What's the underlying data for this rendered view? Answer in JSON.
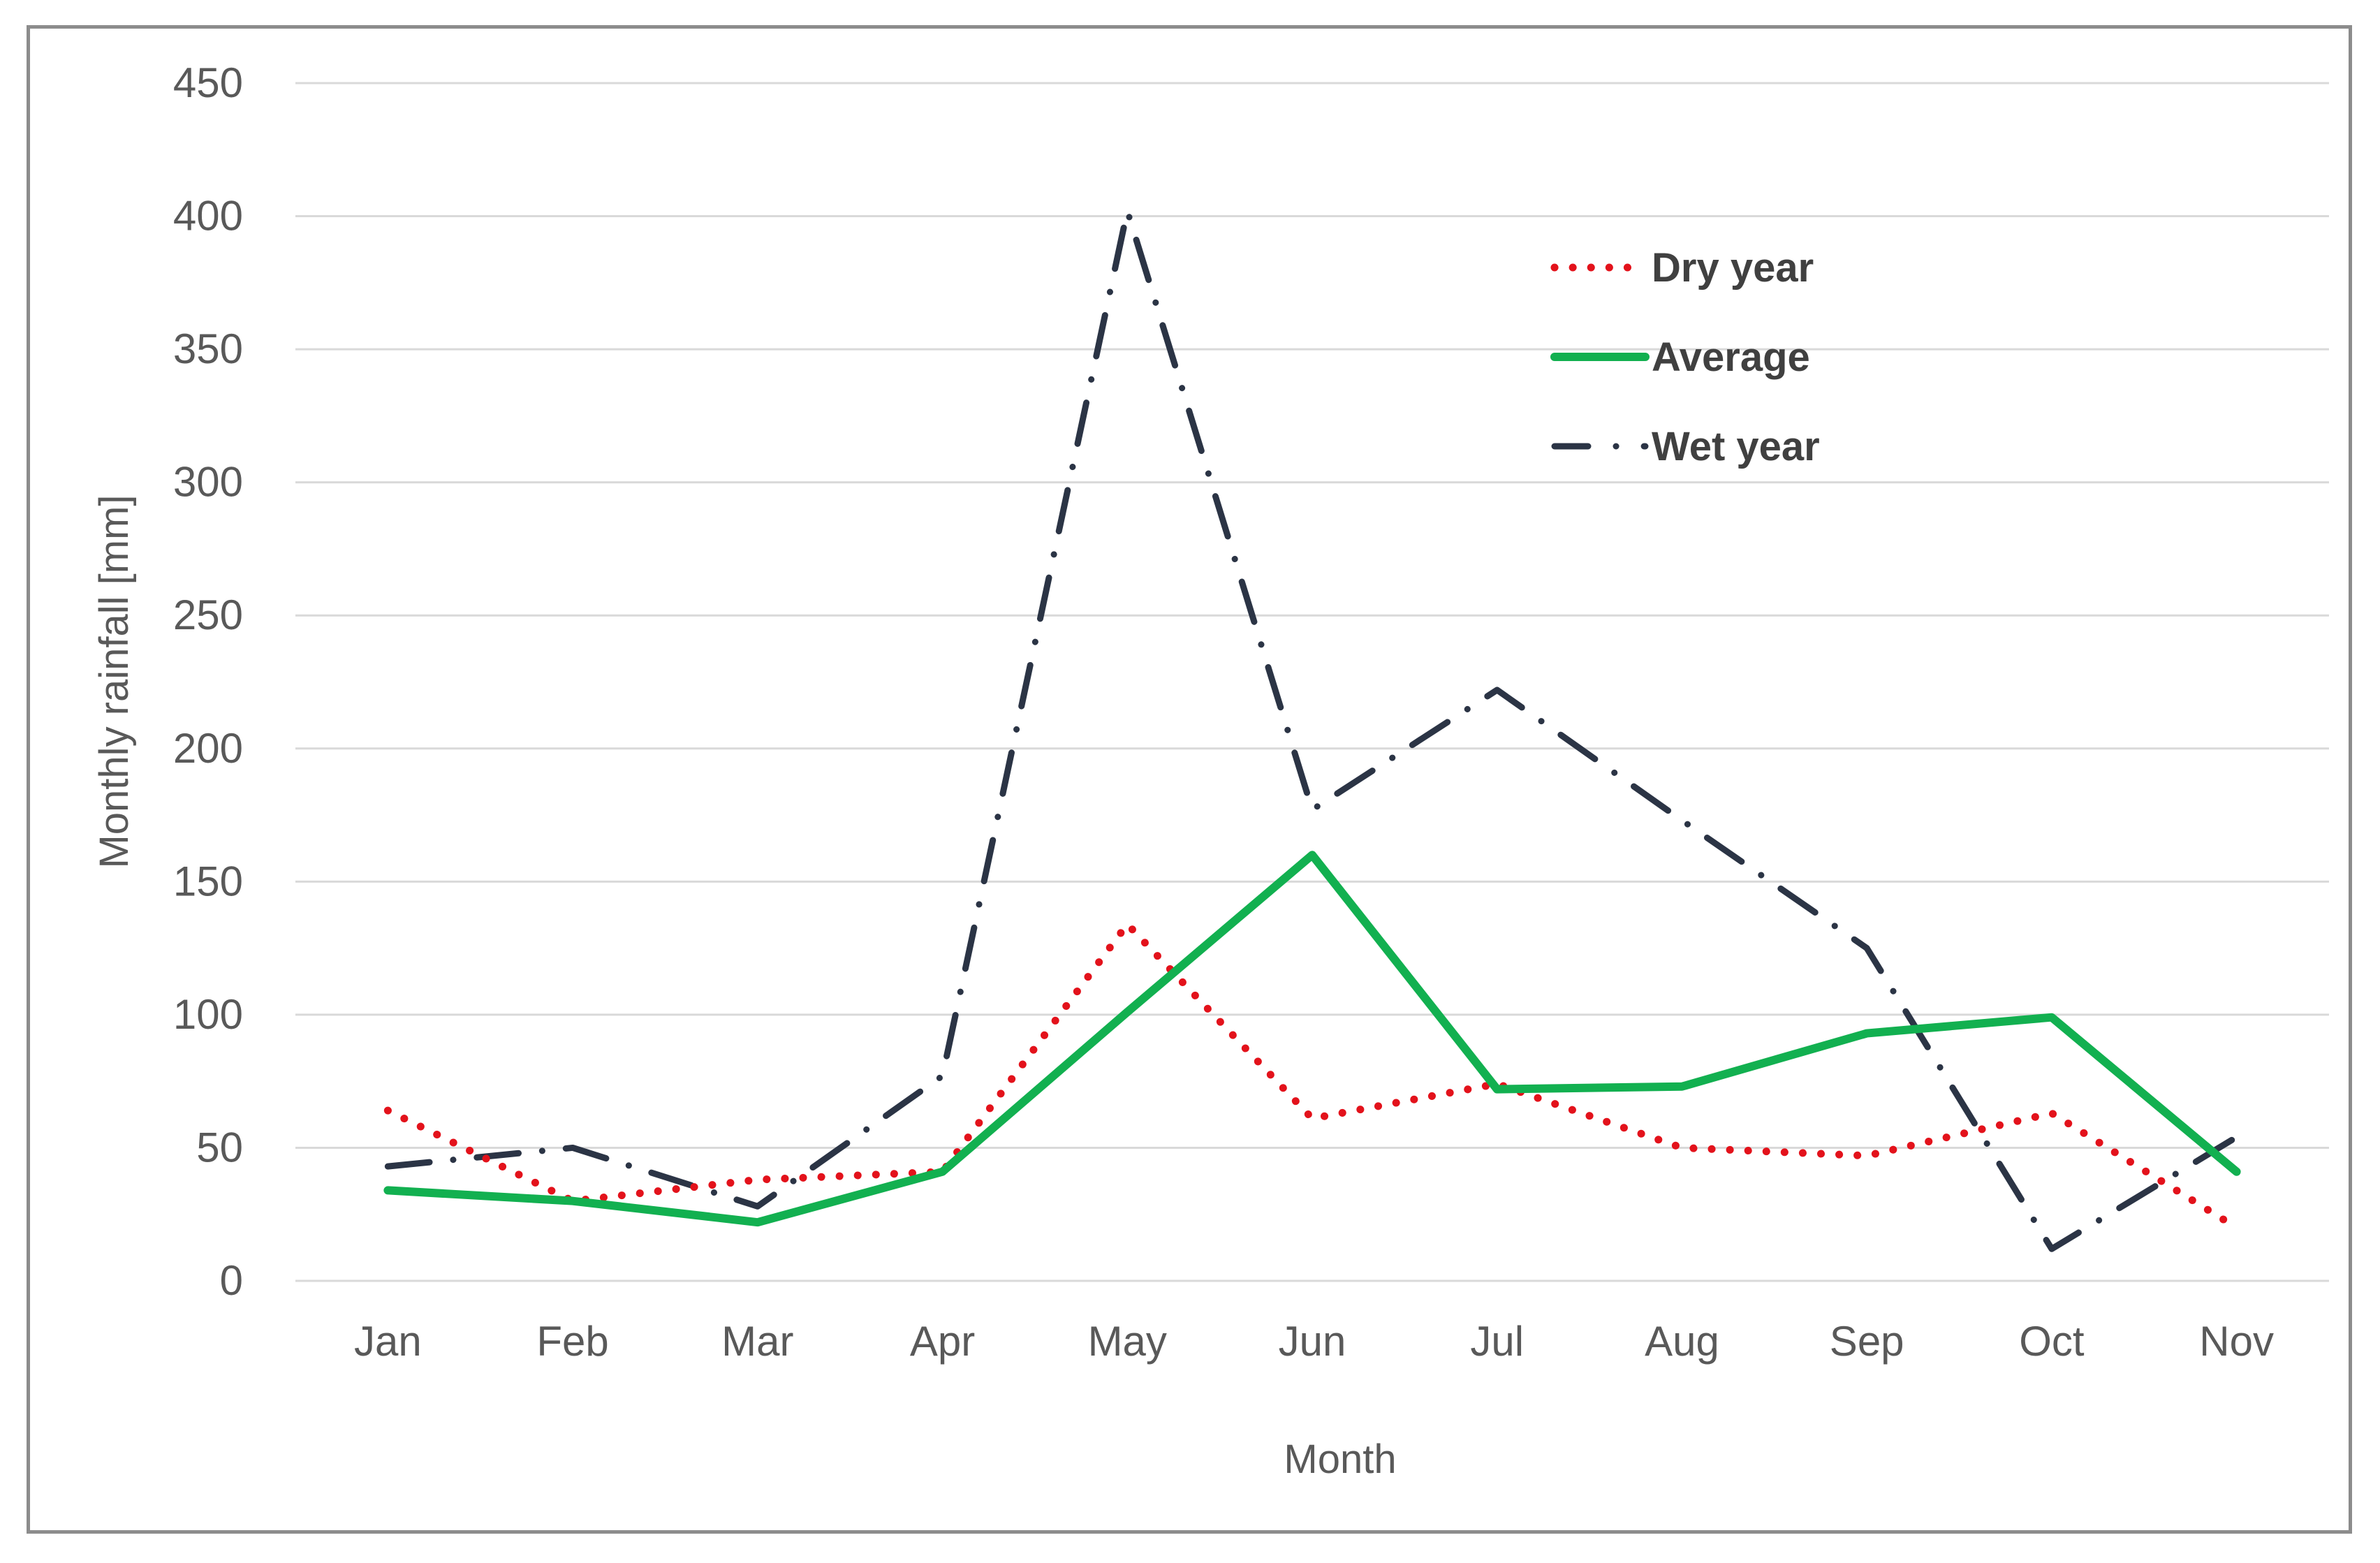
{
  "chart_data": {
    "type": "line",
    "title": "",
    "xlabel": "Month",
    "ylabel": "Monthly rainfall [mm]",
    "ylim": [
      0,
      450
    ],
    "yticks": [
      0,
      50,
      100,
      150,
      200,
      250,
      300,
      350,
      400,
      450
    ],
    "grid": true,
    "legend_position": "top-right",
    "categories": [
      "Jan",
      "Feb",
      "Mar",
      "Apr",
      "May",
      "Jun",
      "Jul",
      "Aug",
      "Sep",
      "Oct",
      "Nov"
    ],
    "series": [
      {
        "name": "Dry year",
        "style": "dotted",
        "color": "#e3121b",
        "values": [
          64,
          30,
          38,
          41,
          134,
          61,
          74,
          50,
          47,
          63,
          20
        ]
      },
      {
        "name": "Average",
        "style": "solid",
        "color": "#12b050",
        "values": [
          34,
          30,
          22,
          41,
          101,
          160,
          72,
          73,
          93,
          99,
          41
        ]
      },
      {
        "name": "Wet year",
        "style": "dash-dot",
        "color": "#2b3445",
        "values": [
          43,
          50,
          28,
          77,
          402,
          177,
          222,
          173,
          125,
          12,
          54
        ]
      }
    ]
  }
}
